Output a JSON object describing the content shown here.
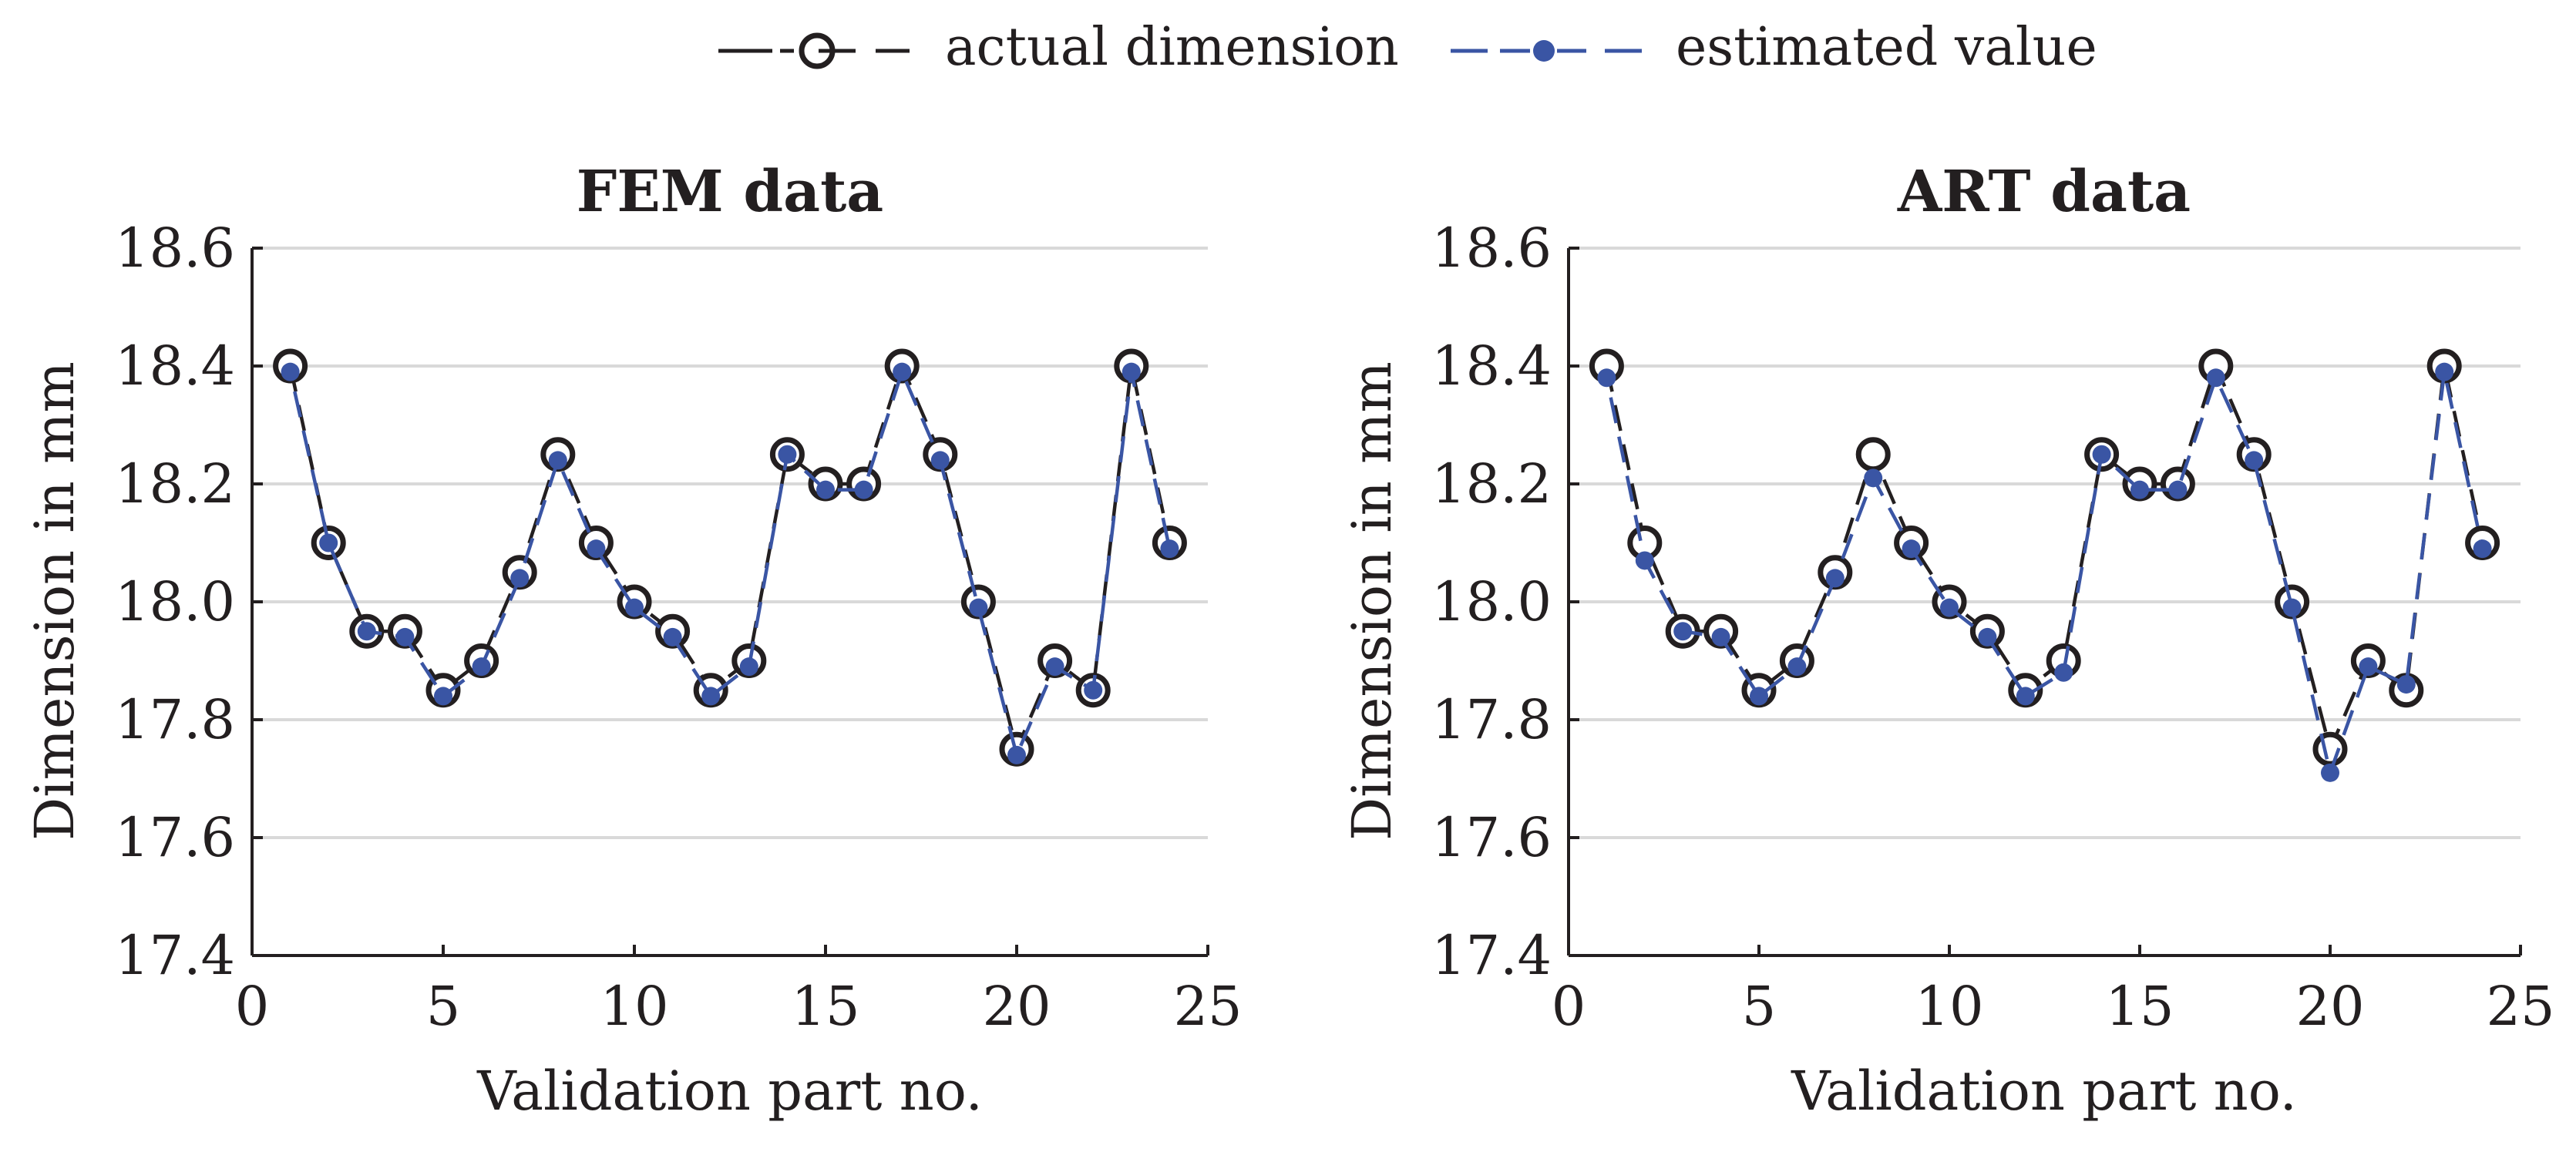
{
  "legend": {
    "actual_label": "actual dimension",
    "estimated_label": "estimated value"
  },
  "colors": {
    "actual": "#231f20",
    "estimated": "#3a55a4",
    "grid": "#d9d9d9",
    "axis": "#231f20"
  },
  "chart_data": [
    {
      "type": "line",
      "title": "FEM data",
      "xlabel": "Validation part no.",
      "ylabel": "Dimension in mm",
      "xlim": [
        0,
        25
      ],
      "ylim": [
        17.4,
        18.6
      ],
      "xticks": [
        0,
        5,
        10,
        15,
        20,
        25
      ],
      "yticks": [
        17.4,
        17.6,
        17.8,
        18.0,
        18.2,
        18.4,
        18.6
      ],
      "ytick_labels": [
        "17.4",
        "17.6",
        "17.8",
        "18.0",
        "18.2",
        "18.4",
        "18.6"
      ],
      "grid": "horizontal",
      "x": [
        1,
        2,
        3,
        4,
        5,
        6,
        7,
        8,
        9,
        10,
        11,
        12,
        13,
        14,
        15,
        16,
        17,
        18,
        19,
        20,
        21,
        22,
        23,
        24
      ],
      "series": [
        {
          "name": "actual dimension",
          "values": [
            18.4,
            18.1,
            17.95,
            17.95,
            17.85,
            17.9,
            18.05,
            18.25,
            18.1,
            18.0,
            17.95,
            17.85,
            17.9,
            18.25,
            18.2,
            18.2,
            18.4,
            18.25,
            18.0,
            17.75,
            17.9,
            17.85,
            18.4,
            18.1
          ]
        },
        {
          "name": "estimated value",
          "values": [
            18.39,
            18.1,
            17.95,
            17.94,
            17.84,
            17.89,
            18.04,
            18.24,
            18.09,
            17.99,
            17.94,
            17.84,
            17.89,
            18.25,
            18.19,
            18.19,
            18.39,
            18.24,
            17.99,
            17.74,
            17.89,
            17.85,
            18.39,
            18.09
          ]
        }
      ]
    },
    {
      "type": "line",
      "title": "ART data",
      "xlabel": "Validation part no.",
      "ylabel": "Dimension in mm",
      "xlim": [
        0,
        25
      ],
      "ylim": [
        17.4,
        18.6
      ],
      "xticks": [
        0,
        5,
        10,
        15,
        20,
        25
      ],
      "yticks": [
        17.4,
        17.6,
        17.8,
        18.0,
        18.2,
        18.4,
        18.6
      ],
      "ytick_labels": [
        "17.4",
        "17.6",
        "17.8",
        "18.0",
        "18.2",
        "18.4",
        "18.6"
      ],
      "grid": "horizontal",
      "x": [
        1,
        2,
        3,
        4,
        5,
        6,
        7,
        8,
        9,
        10,
        11,
        12,
        13,
        14,
        15,
        16,
        17,
        18,
        19,
        20,
        21,
        22,
        23,
        24
      ],
      "series": [
        {
          "name": "actual dimension",
          "values": [
            18.4,
            18.1,
            17.95,
            17.95,
            17.85,
            17.9,
            18.05,
            18.25,
            18.1,
            18.0,
            17.95,
            17.85,
            17.9,
            18.25,
            18.2,
            18.2,
            18.4,
            18.25,
            18.0,
            17.75,
            17.9,
            17.85,
            18.4,
            18.1
          ]
        },
        {
          "name": "estimated value",
          "values": [
            18.38,
            18.07,
            17.95,
            17.94,
            17.84,
            17.89,
            18.04,
            18.21,
            18.09,
            17.99,
            17.94,
            17.84,
            17.88,
            18.25,
            18.19,
            18.19,
            18.38,
            18.24,
            17.99,
            17.71,
            17.89,
            17.86,
            18.39,
            18.09
          ]
        }
      ]
    }
  ]
}
